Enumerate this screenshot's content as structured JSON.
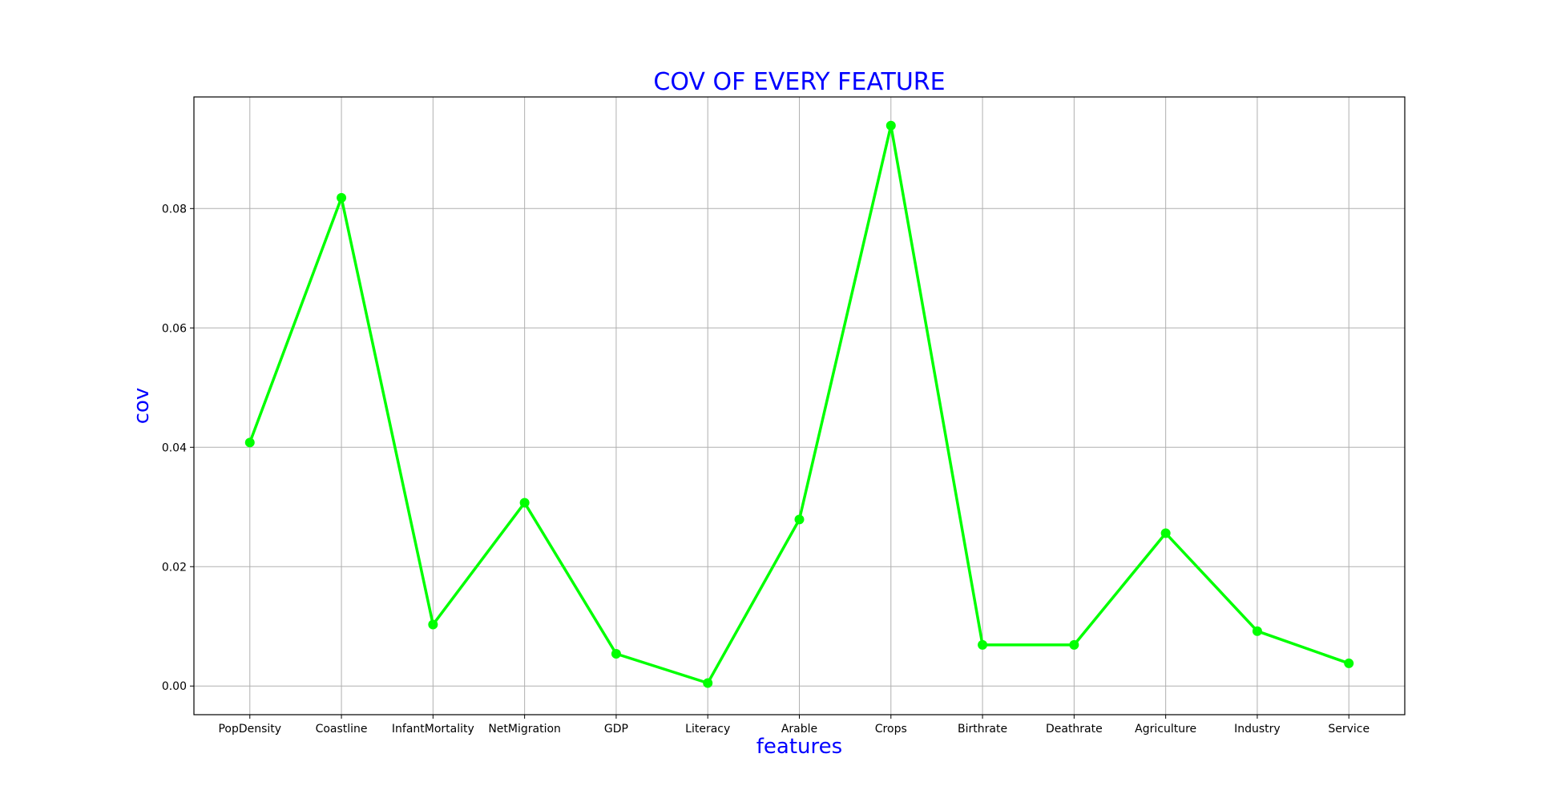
{
  "chart_data": {
    "type": "line",
    "title": "COV OF EVERY FEATURE",
    "xlabel": "features",
    "ylabel": "cov",
    "categories": [
      "PopDensity",
      "Coastline",
      "InfantMortality",
      "NetMigration",
      "GDP",
      "Literacy",
      "Arable",
      "Crops",
      "Birthrate",
      "Deathrate",
      "Agriculture",
      "Industry",
      "Service"
    ],
    "series": [
      {
        "values": [
          0.0408,
          0.0818,
          0.0103,
          0.0307,
          0.0054,
          0.0005,
          0.0279,
          0.0939,
          0.0069,
          0.0069,
          0.0256,
          0.0092,
          0.0038
        ]
      }
    ],
    "ylim": [
      -0.0048,
      0.0987
    ],
    "yticks": [
      0.0,
      0.02,
      0.04,
      0.06,
      0.08
    ],
    "ytick_labels": [
      "0.00",
      "0.02",
      "0.04",
      "0.06",
      "0.08"
    ],
    "grid": true,
    "colors": {
      "line": "#00ff00",
      "marker": "#00ff00",
      "title": "#0000ff",
      "axis_labels": "#0000ff"
    }
  }
}
